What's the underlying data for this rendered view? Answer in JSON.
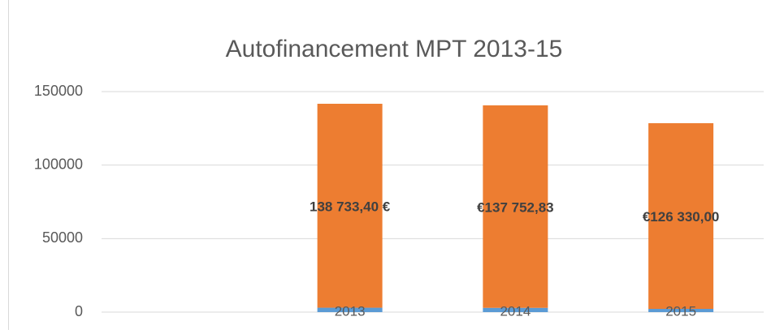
{
  "chart_data": {
    "type": "stacked_bar",
    "title": "Autofinancement MPT 2013-15",
    "categories": [
      null,
      "2013",
      "2014",
      "2015"
    ],
    "series": [
      {
        "color": "#5b9bd5",
        "values": [
          null,
          3000,
          2900,
          2200
        ]
      },
      {
        "color": "#ed7d31",
        "values": [
          null,
          138733.4,
          137752.83,
          126330.0
        ],
        "value_labels": [
          null,
          "138 733,40 €",
          "€137 752,83",
          "€126 330,00"
        ]
      }
    ],
    "ylim": [
      0,
      150000
    ],
    "yticks": [
      0,
      50000,
      100000,
      150000
    ],
    "grid": true
  }
}
